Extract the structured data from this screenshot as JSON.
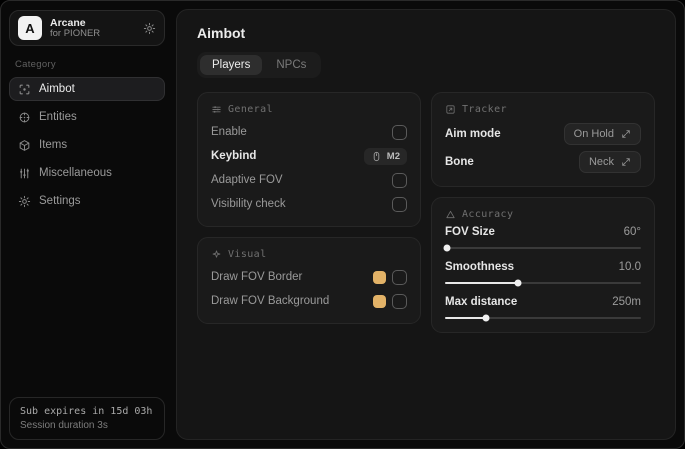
{
  "app": {
    "logo_letter": "A",
    "name": "Arcane",
    "subtitle": "for PIONER"
  },
  "sidebar": {
    "category_label": "Category",
    "items": [
      {
        "label": "Aimbot",
        "selected": true
      },
      {
        "label": "Entities",
        "selected": false
      },
      {
        "label": "Items",
        "selected": false
      },
      {
        "label": "Miscellaneous",
        "selected": false
      },
      {
        "label": "Settings",
        "selected": false
      }
    ],
    "footer": {
      "line1": "Sub expires in 15d 03h",
      "line2": "Session duration 3s"
    }
  },
  "main": {
    "title": "Aimbot",
    "tabs": [
      {
        "label": "Players",
        "selected": true
      },
      {
        "label": "NPCs",
        "selected": false
      }
    ],
    "cards": {
      "general": {
        "title": "General",
        "rows": [
          {
            "label": "Enable",
            "control": "checkbox",
            "checked": false
          },
          {
            "label": "Keybind",
            "control": "keybind",
            "value": "M2"
          },
          {
            "label": "Adaptive FOV",
            "control": "checkbox",
            "checked": false
          },
          {
            "label": "Visibility check",
            "control": "checkbox",
            "checked": false
          }
        ]
      },
      "visual": {
        "title": "Visual",
        "rows": [
          {
            "label": "Draw FOV Border",
            "control": "color+checkbox",
            "color": "#e2b267",
            "checked": false
          },
          {
            "label": "Draw FOV Background",
            "control": "color+checkbox",
            "color": "#e2b267",
            "checked": false
          }
        ]
      },
      "tracker": {
        "title": "Tracker",
        "rows": [
          {
            "label": "Aim mode",
            "control": "dropdown",
            "value": "On Hold"
          },
          {
            "label": "Bone",
            "control": "dropdown",
            "value": "Neck"
          }
        ]
      },
      "accuracy": {
        "title": "Accuracy",
        "rows": [
          {
            "label": "FOV Size",
            "value": "60°",
            "percent": 1
          },
          {
            "label": "Smoothness",
            "value": "10.0",
            "percent": 37
          },
          {
            "label": "Max distance",
            "value": "250m",
            "percent": 21
          }
        ]
      }
    }
  },
  "colors": {
    "accent_gold": "#e2b267"
  }
}
